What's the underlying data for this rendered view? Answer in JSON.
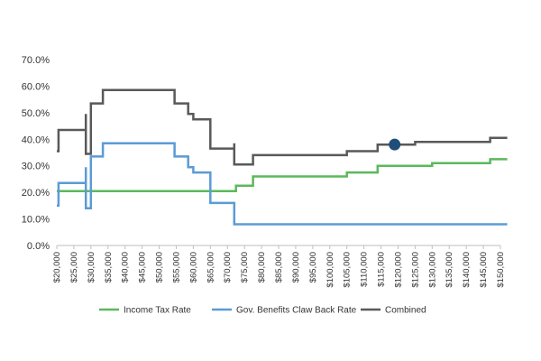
{
  "chart_data": {
    "type": "line",
    "step": true,
    "x_tick_labels": [
      "$20,000",
      "$25,000",
      "$30,000",
      "$35,000",
      "$40,000",
      "$45,000",
      "$50,000",
      "$55,000",
      "$60,000",
      "$65,000",
      "$70,000",
      "$75,000",
      "$80,000",
      "$85,000",
      "$90,000",
      "$95,000",
      "$100,000",
      "$105,000",
      "$110,000",
      "$115,000",
      "$120,000",
      "$125,000",
      "$130,000",
      "$135,000",
      "$140,000",
      "$145,000",
      "$150,000"
    ],
    "xlim": [
      20000,
      150000
    ],
    "y_tick_labels": [
      "0.0%",
      "10.0%",
      "20.0%",
      "30.0%",
      "40.0%",
      "50.0%",
      "60.0%",
      "70.0%"
    ],
    "ylim": [
      0,
      70
    ],
    "grid": false,
    "legend_position": "bottom",
    "colors": {
      "axis": "#bfbfbf",
      "text": "#333333",
      "marker": "#1f4e79"
    },
    "series": [
      {
        "name": "Income Tax Rate",
        "color": "#5cb85c",
        "points": [
          [
            20000,
            20.5
          ],
          [
            72500,
            20.5
          ],
          [
            72500,
            22.5
          ],
          [
            77500,
            22.5
          ],
          [
            77500,
            26
          ],
          [
            105000,
            26
          ],
          [
            105000,
            27.5
          ],
          [
            114000,
            27.5
          ],
          [
            114000,
            30
          ],
          [
            130000,
            30
          ],
          [
            130000,
            31
          ],
          [
            147000,
            31
          ],
          [
            147000,
            32.5
          ],
          [
            152000,
            32.5
          ]
        ]
      },
      {
        "name": "Gov. Benefits Claw Back Rate",
        "color": "#5b9bd5",
        "points": [
          [
            20000,
            15
          ],
          [
            20500,
            15
          ],
          [
            20500,
            23.5
          ],
          [
            28500,
            23.5
          ],
          [
            28500,
            29.5
          ],
          [
            28500,
            14
          ],
          [
            30000,
            14
          ],
          [
            30000,
            33.5
          ],
          [
            33500,
            33.5
          ],
          [
            33500,
            38.5
          ],
          [
            54500,
            38.5
          ],
          [
            54500,
            33.5
          ],
          [
            58500,
            33.5
          ],
          [
            58500,
            29.5
          ],
          [
            60000,
            29.5
          ],
          [
            60000,
            27.5
          ],
          [
            65000,
            27.5
          ],
          [
            65000,
            16
          ],
          [
            72000,
            16
          ],
          [
            72000,
            8
          ],
          [
            152000,
            8
          ]
        ]
      },
      {
        "name": "Combined",
        "color": "#595959",
        "points": [
          [
            20000,
            35.5
          ],
          [
            20500,
            35.5
          ],
          [
            20500,
            43.5
          ],
          [
            28500,
            43.5
          ],
          [
            28500,
            49.5
          ],
          [
            28500,
            34.5
          ],
          [
            30000,
            34.5
          ],
          [
            30000,
            53.5
          ],
          [
            33500,
            53.5
          ],
          [
            33500,
            58.5
          ],
          [
            54500,
            58.5
          ],
          [
            54500,
            53.5
          ],
          [
            58500,
            53.5
          ],
          [
            58500,
            49.5
          ],
          [
            60000,
            49.5
          ],
          [
            60000,
            47.5
          ],
          [
            65000,
            47.5
          ],
          [
            65000,
            36.5
          ],
          [
            72000,
            36.5
          ],
          [
            72000,
            38.5
          ],
          [
            72000,
            30.5
          ],
          [
            77500,
            30.5
          ],
          [
            77500,
            34
          ],
          [
            105000,
            34
          ],
          [
            105000,
            35.5
          ],
          [
            114000,
            35.5
          ],
          [
            114000,
            38
          ],
          [
            125000,
            38
          ],
          [
            125000,
            39
          ],
          [
            147000,
            39
          ],
          [
            147000,
            40.5
          ],
          [
            152000,
            40.5
          ]
        ]
      }
    ],
    "marker": {
      "series": "Combined",
      "x": 119000,
      "y": 38
    }
  }
}
